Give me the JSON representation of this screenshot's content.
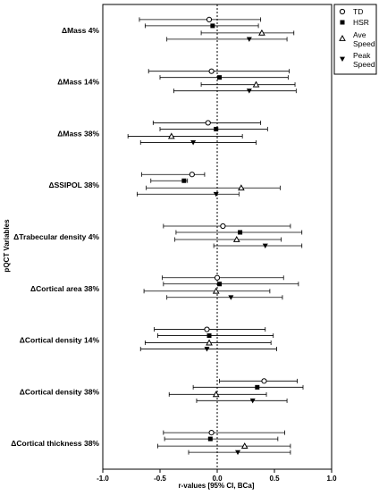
{
  "chart_data": {
    "type": "forest",
    "ylabel": "pQCT Variables",
    "xlabel": "r-values [95% CI, BCa]",
    "xlim": [
      -1.0,
      1.0
    ],
    "xticks": [
      "-1.0",
      "-0.5",
      "0.0",
      "0.5",
      "1.0"
    ],
    "xtick_values": [
      -1.0,
      -0.5,
      0.0,
      0.5,
      1.0
    ],
    "reference_line": 0.0,
    "legend_position": "top-right",
    "series": [
      {
        "name": "TD",
        "marker": "circle-open"
      },
      {
        "name": "HSR",
        "marker": "square-filled"
      },
      {
        "name": "Ave Speed",
        "marker": "triangle-up-open"
      },
      {
        "name": "Peak Speed",
        "marker": "triangle-down-filled"
      }
    ],
    "categories": [
      {
        "label": "ΔMass 4%",
        "rows": [
          {
            "r": -0.07,
            "ci": [
              -0.68,
              0.38
            ]
          },
          {
            "r": -0.04,
            "ci": [
              -0.63,
              0.36
            ]
          },
          {
            "r": 0.39,
            "ci": [
              -0.14,
              0.67
            ]
          },
          {
            "r": 0.28,
            "ci": [
              -0.44,
              0.61
            ]
          }
        ]
      },
      {
        "label": "ΔMass 14%",
        "rows": [
          {
            "r": -0.05,
            "ci": [
              -0.6,
              0.63
            ]
          },
          {
            "r": 0.02,
            "ci": [
              -0.5,
              0.62
            ]
          },
          {
            "r": 0.34,
            "ci": [
              -0.14,
              0.68
            ]
          },
          {
            "r": 0.28,
            "ci": [
              -0.38,
              0.69
            ]
          }
        ]
      },
      {
        "label": "ΔMass 38%",
        "rows": [
          {
            "r": -0.08,
            "ci": [
              -0.56,
              0.38
            ]
          },
          {
            "r": -0.01,
            "ci": [
              -0.5,
              0.44
            ]
          },
          {
            "r": -0.4,
            "ci": [
              -0.78,
              0.22
            ]
          },
          {
            "r": -0.21,
            "ci": [
              -0.67,
              0.34
            ]
          }
        ]
      },
      {
        "label": "ΔSSIPOL 38%",
        "rows": [
          {
            "r": -0.22,
            "ci": [
              -0.66,
              -0.11
            ]
          },
          {
            "r": -0.29,
            "ci": [
              -0.58,
              -0.26
            ]
          },
          {
            "r": 0.21,
            "ci": [
              -0.62,
              0.55
            ]
          },
          {
            "r": -0.01,
            "ci": [
              -0.7,
              0.19
            ]
          }
        ]
      },
      {
        "label": "ΔTrabecular density 4%",
        "rows": [
          {
            "r": 0.05,
            "ci": [
              -0.47,
              0.64
            ]
          },
          {
            "r": 0.2,
            "ci": [
              -0.36,
              0.74
            ]
          },
          {
            "r": 0.17,
            "ci": [
              -0.37,
              0.56
            ]
          },
          {
            "r": 0.42,
            "ci": [
              -0.03,
              0.74
            ]
          }
        ]
      },
      {
        "label": "ΔCortical area 38%",
        "rows": [
          {
            "r": 0.0,
            "ci": [
              -0.48,
              0.58
            ]
          },
          {
            "r": 0.02,
            "ci": [
              -0.47,
              0.71
            ]
          },
          {
            "r": -0.01,
            "ci": [
              -0.64,
              0.46
            ]
          },
          {
            "r": 0.12,
            "ci": [
              -0.44,
              0.57
            ]
          }
        ]
      },
      {
        "label": "ΔCortical density 14%",
        "rows": [
          {
            "r": -0.09,
            "ci": [
              -0.55,
              0.42
            ]
          },
          {
            "r": -0.07,
            "ci": [
              -0.52,
              0.49
            ]
          },
          {
            "r": -0.07,
            "ci": [
              -0.63,
              0.47
            ]
          },
          {
            "r": -0.09,
            "ci": [
              -0.67,
              0.52
            ]
          }
        ]
      },
      {
        "label": "ΔCortical density 38%",
        "rows": [
          {
            "r": 0.41,
            "ci": [
              0.02,
              0.7
            ]
          },
          {
            "r": 0.35,
            "ci": [
              -0.21,
              0.75
            ]
          },
          {
            "r": -0.01,
            "ci": [
              -0.42,
              0.43
            ]
          },
          {
            "r": 0.31,
            "ci": [
              -0.18,
              0.61
            ]
          }
        ]
      },
      {
        "label": "ΔCortical thickness 38%",
        "rows": [
          {
            "r": -0.05,
            "ci": [
              -0.47,
              0.59
            ]
          },
          {
            "r": -0.06,
            "ci": [
              -0.46,
              0.53
            ]
          },
          {
            "r": 0.24,
            "ci": [
              -0.52,
              0.64
            ]
          },
          {
            "r": 0.18,
            "ci": [
              -0.25,
              0.64
            ]
          }
        ]
      }
    ]
  }
}
